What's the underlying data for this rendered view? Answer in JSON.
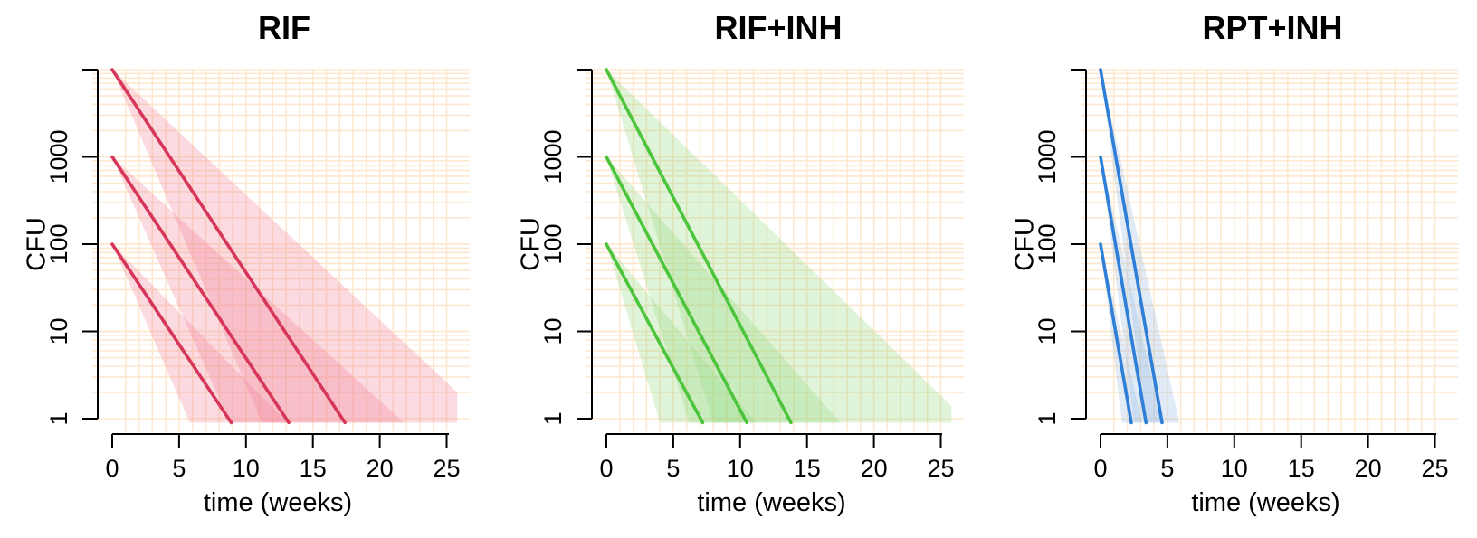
{
  "chart_data": [
    {
      "type": "line",
      "title": "RIF",
      "xlabel": "time (weeks)",
      "ylabel": "CFU",
      "x_scale": "linear",
      "y_scale": "log",
      "xlim": [
        0,
        26
      ],
      "ylim": [
        0.9,
        10000
      ],
      "x_ticks": [
        0,
        5,
        10,
        15,
        20,
        25
      ],
      "x_tick_labels": [
        "0",
        "5",
        "10",
        "15",
        "20",
        "25"
      ],
      "y_ticks": [
        1,
        10,
        100,
        1000
      ],
      "y_tick_labels": [
        "1",
        "10",
        "100",
        "1000"
      ],
      "grid": true,
      "grid_color": "#fde8cf",
      "line_color": "#d6365a",
      "band_color": "#f07a92",
      "series": [
        {
          "x": [
            0,
            8.9
          ],
          "y": [
            100,
            0.9
          ],
          "band": [
            [
              0,
              100
            ],
            [
              5.8,
              0.9
            ],
            [
              13.1,
              0.9
            ]
          ]
        },
        {
          "x": [
            0,
            13.2
          ],
          "y": [
            1000,
            0.9
          ],
          "band": [
            [
              0,
              1000
            ],
            [
              8.8,
              0.9
            ],
            [
              21.8,
              0.9
            ]
          ]
        },
        {
          "x": [
            0,
            17.4
          ],
          "y": [
            10000,
            0.9
          ],
          "band": [
            [
              0,
              10000
            ],
            [
              11.2,
              0.9
            ],
            [
              25.8,
              0.9
            ],
            [
              25.8,
              2
            ]
          ]
        }
      ]
    },
    {
      "type": "line",
      "title": "RIF+INH",
      "xlabel": "time (weeks)",
      "ylabel": "CFU",
      "x_scale": "linear",
      "y_scale": "log",
      "xlim": [
        0,
        26
      ],
      "ylim": [
        0.9,
        10000
      ],
      "x_ticks": [
        0,
        5,
        10,
        15,
        20,
        25
      ],
      "x_tick_labels": [
        "0",
        "5",
        "10",
        "15",
        "20",
        "25"
      ],
      "y_ticks": [
        1,
        10,
        100,
        1000
      ],
      "y_tick_labels": [
        "1",
        "10",
        "100",
        "1000"
      ],
      "grid": true,
      "grid_color": "#fde8cf",
      "line_color": "#4cc43c",
      "band_color": "#8ed97a",
      "series": [
        {
          "x": [
            0,
            7.2
          ],
          "y": [
            100,
            0.9
          ],
          "band": [
            [
              0,
              100
            ],
            [
              4,
              0.9
            ],
            [
              11.2,
              0.9
            ]
          ]
        },
        {
          "x": [
            0,
            10.5
          ],
          "y": [
            1000,
            0.9
          ],
          "band": [
            [
              0,
              1000
            ],
            [
              6.2,
              0.9
            ],
            [
              17.5,
              0.9
            ]
          ]
        },
        {
          "x": [
            0,
            13.8
          ],
          "y": [
            10000,
            0.9
          ],
          "band": [
            [
              0,
              10000
            ],
            [
              8,
              0.9
            ],
            [
              25.8,
              0.9
            ],
            [
              25.8,
              1.4
            ]
          ]
        }
      ]
    },
    {
      "type": "line",
      "title": "RPT+INH",
      "xlabel": "time (weeks)",
      "ylabel": "CFU",
      "x_scale": "linear",
      "y_scale": "log",
      "xlim": [
        0,
        26
      ],
      "ylim": [
        0.9,
        10000
      ],
      "x_ticks": [
        0,
        5,
        10,
        15,
        20,
        25
      ],
      "x_tick_labels": [
        "0",
        "5",
        "10",
        "15",
        "20",
        "25"
      ],
      "y_ticks": [
        1,
        10,
        100,
        1000
      ],
      "y_tick_labels": [
        "1",
        "10",
        "100",
        "1000"
      ],
      "grid": true,
      "grid_color": "#fde8cf",
      "line_color": "#2f7fd8",
      "band_color": "#90b8e4",
      "series": [
        {
          "x": [
            0,
            2.3
          ],
          "y": [
            100,
            0.9
          ],
          "band": [
            [
              0,
              100
            ],
            [
              1.6,
              0.9
            ],
            [
              3.1,
              0.9
            ]
          ]
        },
        {
          "x": [
            0,
            3.4
          ],
          "y": [
            1000,
            0.9
          ],
          "band": [
            [
              0,
              1000
            ],
            [
              2.5,
              0.9
            ],
            [
              4.6,
              0.9
            ]
          ]
        },
        {
          "x": [
            0,
            4.6
          ],
          "y": [
            10000,
            0.9
          ],
          "band": [
            [
              0,
              10000
            ],
            [
              3.4,
              0.9
            ],
            [
              5.9,
              0.9
            ]
          ]
        }
      ]
    }
  ]
}
